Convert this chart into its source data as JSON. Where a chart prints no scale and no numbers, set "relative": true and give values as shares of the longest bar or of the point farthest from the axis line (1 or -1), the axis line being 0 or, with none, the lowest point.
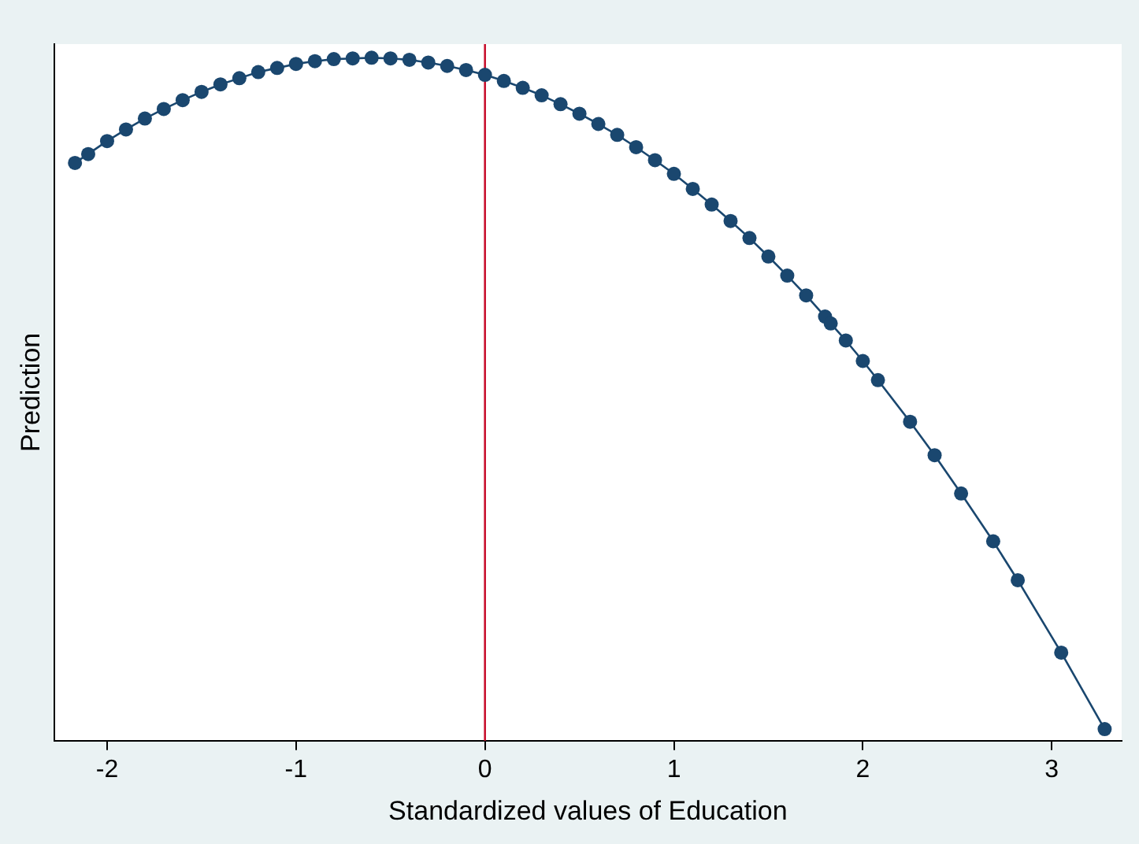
{
  "chart_data": {
    "type": "line",
    "xlabel": "Standardized values of Education",
    "ylabel": "Prediction",
    "relative": true,
    "xlim": [
      -2.28,
      3.37
    ],
    "xticks": [
      -2,
      -1,
      0,
      1,
      2,
      3
    ],
    "grid": false,
    "legend": false,
    "marker": "circle",
    "line_style": "solid",
    "ref_lines": [
      {
        "axis": "x",
        "value": 0,
        "color": "#c8102e"
      }
    ],
    "series": [
      {
        "color": "#1a476f",
        "x": [
          -2.17,
          -2.1,
          -2.0,
          -1.9,
          -1.8,
          -1.7,
          -1.6,
          -1.5,
          -1.4,
          -1.3,
          -1.2,
          -1.1,
          -1.0,
          -0.9,
          -0.8,
          -0.7,
          -0.6,
          -0.5,
          -0.4,
          -0.3,
          -0.2,
          -0.1,
          0,
          0.1,
          0.2,
          0.3,
          0.4,
          0.5,
          0.6,
          0.7,
          0.8,
          0.9,
          1.0,
          1.1,
          1.2,
          1.3,
          1.4,
          1.5,
          1.6,
          1.7,
          1.8,
          1.83,
          1.91,
          2.0,
          2.08,
          2.25,
          2.38,
          2.52,
          2.69,
          2.82,
          3.05,
          3.28
        ],
        "values": [
          0.846,
          0.859,
          0.878,
          0.895,
          0.911,
          0.925,
          0.938,
          0.95,
          0.961,
          0.97,
          0.979,
          0.985,
          0.991,
          0.995,
          0.998,
          0.999,
          1.0,
          0.999,
          0.997,
          0.993,
          0.988,
          0.982,
          0.975,
          0.966,
          0.956,
          0.945,
          0.932,
          0.918,
          0.903,
          0.887,
          0.869,
          0.85,
          0.83,
          0.808,
          0.785,
          0.761,
          0.736,
          0.709,
          0.681,
          0.652,
          0.621,
          0.611,
          0.586,
          0.556,
          0.528,
          0.467,
          0.418,
          0.362,
          0.292,
          0.235,
          0.129,
          0.017
        ]
      }
    ]
  }
}
